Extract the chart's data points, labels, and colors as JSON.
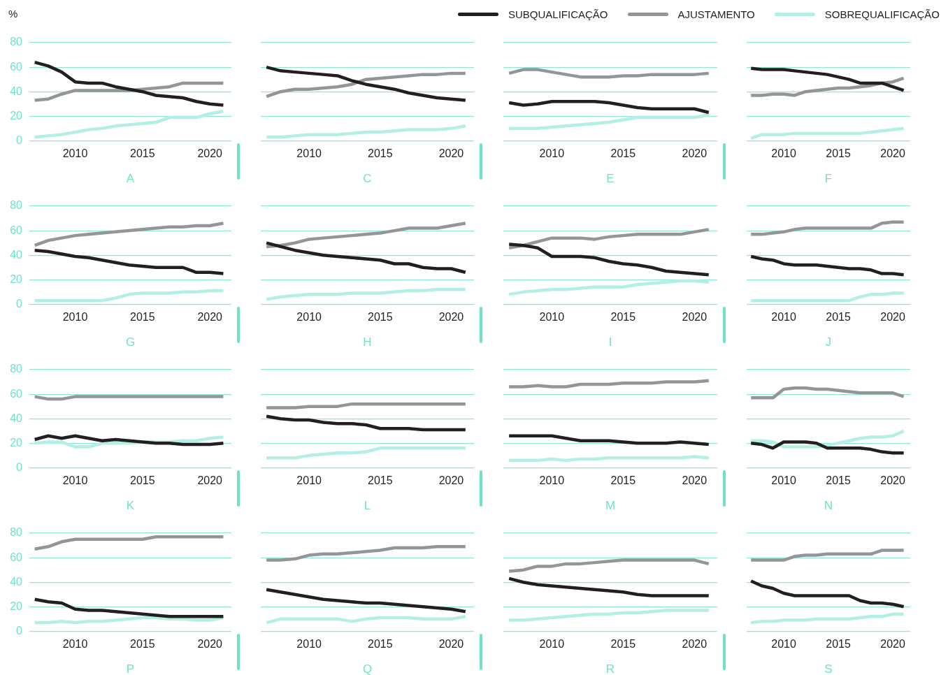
{
  "chart_data": [
    {
      "type": "line",
      "xlabel": "A",
      "ylabel": "%",
      "legend": "top right",
      "marker": "none",
      "grid": "y",
      "x": [
        2007,
        2008,
        2009,
        2010,
        2011,
        2012,
        2013,
        2014,
        2015,
        2016,
        2017,
        2018,
        2019,
        2020,
        2021
      ],
      "xlim": [
        2006.6,
        2021.6
      ],
      "xticks": [
        2010,
        2015,
        2020
      ],
      "ylim": [
        0,
        80
      ],
      "yticks": [
        0,
        20,
        40,
        60,
        80
      ],
      "series": [
        {
          "name": "SUBQUALIFICAÇÃO",
          "color": "#231f20",
          "values": [
            64,
            61,
            56,
            48,
            47,
            47,
            44,
            42,
            40,
            37,
            36,
            35,
            32,
            30,
            29
          ]
        },
        {
          "name": "AJUSTAMENTO",
          "color": "#939598",
          "values": [
            33,
            34,
            38,
            41,
            41,
            41,
            41,
            41,
            42,
            43,
            44,
            47,
            47,
            47,
            47
          ]
        },
        {
          "name": "SOBREQUALIFICAÇÃO",
          "color": "#b3f0e3",
          "values": [
            3,
            4,
            5,
            7,
            9,
            10,
            12,
            13,
            14,
            15,
            19,
            19,
            19,
            22,
            24
          ]
        }
      ]
    },
    {
      "type": "line",
      "xlabel": "C",
      "tick_labels": "x",
      "marker": "none",
      "grid": "y",
      "x": [
        2007,
        2008,
        2009,
        2010,
        2011,
        2012,
        2013,
        2014,
        2015,
        2016,
        2017,
        2018,
        2019,
        2020,
        2021
      ],
      "xlim": [
        2006.6,
        2021.6
      ],
      "xticks": [
        2010,
        2015,
        2020
      ],
      "ylim": [
        0,
        80
      ],
      "yticks": [
        0,
        20,
        40,
        60,
        80
      ],
      "series": [
        {
          "color": "#231f20",
          "values": [
            60,
            57,
            56,
            55,
            54,
            53,
            49,
            46,
            44,
            42,
            39,
            37,
            35,
            34,
            33
          ]
        },
        {
          "color": "#939598",
          "values": [
            36,
            40,
            42,
            42,
            43,
            44,
            46,
            50,
            51,
            52,
            53,
            54,
            54,
            55,
            55
          ]
        },
        {
          "color": "#b3f0e3",
          "values": [
            3,
            3,
            4,
            5,
            5,
            5,
            6,
            7,
            7,
            8,
            9,
            9,
            9,
            10,
            12
          ]
        }
      ]
    },
    {
      "type": "line",
      "xlabel": "E",
      "tick_labels": "x",
      "marker": "none",
      "grid": "y",
      "x": [
        2007,
        2008,
        2009,
        2010,
        2011,
        2012,
        2013,
        2014,
        2015,
        2016,
        2017,
        2018,
        2019,
        2020,
        2021
      ],
      "xlim": [
        2006.6,
        2021.6
      ],
      "xticks": [
        2010,
        2015,
        2020
      ],
      "ylim": [
        0,
        80
      ],
      "yticks": [
        0,
        20,
        40,
        60,
        80
      ],
      "series": [
        {
          "color": "#231f20",
          "values": [
            31,
            29,
            30,
            32,
            32,
            32,
            32,
            31,
            29,
            27,
            26,
            26,
            26,
            26,
            23
          ]
        },
        {
          "color": "#939598",
          "values": [
            55,
            58,
            58,
            56,
            54,
            52,
            52,
            52,
            53,
            53,
            54,
            54,
            54,
            54,
            55
          ]
        },
        {
          "color": "#b3f0e3",
          "values": [
            10,
            10,
            10,
            11,
            12,
            13,
            14,
            15,
            17,
            19,
            19,
            19,
            19,
            19,
            21
          ]
        }
      ]
    },
    {
      "type": "line",
      "xlabel": "F",
      "tick_labels": "x",
      "marker": "none",
      "grid": "y",
      "x": [
        2007,
        2008,
        2009,
        2010,
        2011,
        2012,
        2013,
        2014,
        2015,
        2016,
        2017,
        2018,
        2019,
        2020,
        2021
      ],
      "xlim": [
        2006.6,
        2021.6
      ],
      "xticks": [
        2010,
        2015,
        2020
      ],
      "ylim": [
        0,
        80
      ],
      "yticks": [
        0,
        20,
        40,
        60,
        80
      ],
      "series": [
        {
          "color": "#231f20",
          "values": [
            59,
            58,
            58,
            58,
            57,
            56,
            55,
            54,
            52,
            50,
            47,
            47,
            47,
            44,
            41
          ]
        },
        {
          "color": "#939598",
          "values": [
            37,
            37,
            38,
            38,
            37,
            40,
            41,
            42,
            43,
            43,
            44,
            45,
            47,
            48,
            51
          ]
        },
        {
          "color": "#b3f0e3",
          "values": [
            2,
            5,
            5,
            5,
            6,
            6,
            6,
            6,
            6,
            6,
            6,
            7,
            8,
            9,
            10
          ]
        }
      ]
    },
    {
      "type": "line",
      "xlabel": "G",
      "marker": "none",
      "grid": "y",
      "x": [
        2007,
        2008,
        2009,
        2010,
        2011,
        2012,
        2013,
        2014,
        2015,
        2016,
        2017,
        2018,
        2019,
        2020,
        2021
      ],
      "xlim": [
        2006.6,
        2021.6
      ],
      "xticks": [
        2010,
        2015,
        2020
      ],
      "ylim": [
        0,
        80
      ],
      "yticks": [
        0,
        20,
        40,
        60,
        80
      ],
      "series": [
        {
          "color": "#231f20",
          "values": [
            44,
            43,
            41,
            39,
            38,
            36,
            34,
            32,
            31,
            30,
            30,
            30,
            26,
            26,
            25
          ]
        },
        {
          "color": "#939598",
          "values": [
            48,
            52,
            54,
            56,
            57,
            58,
            59,
            60,
            61,
            62,
            63,
            63,
            64,
            64,
            66
          ]
        },
        {
          "color": "#b3f0e3",
          "values": [
            3,
            3,
            3,
            3,
            3,
            3,
            5,
            8,
            9,
            9,
            9,
            10,
            10,
            11,
            11
          ]
        }
      ]
    },
    {
      "type": "line",
      "xlabel": "H",
      "tick_labels": "x",
      "marker": "none",
      "grid": "y",
      "x": [
        2007,
        2008,
        2009,
        2010,
        2011,
        2012,
        2013,
        2014,
        2015,
        2016,
        2017,
        2018,
        2019,
        2020,
        2021
      ],
      "xlim": [
        2006.6,
        2021.6
      ],
      "xticks": [
        2010,
        2015,
        2020
      ],
      "ylim": [
        0,
        80
      ],
      "yticks": [
        0,
        20,
        40,
        60,
        80
      ],
      "series": [
        {
          "color": "#231f20",
          "values": [
            50,
            47,
            44,
            42,
            40,
            39,
            38,
            37,
            36,
            33,
            33,
            30,
            29,
            29,
            26
          ]
        },
        {
          "color": "#939598",
          "values": [
            47,
            48,
            50,
            53,
            54,
            55,
            56,
            57,
            58,
            60,
            62,
            62,
            62,
            64,
            66
          ]
        },
        {
          "color": "#b3f0e3",
          "values": [
            4,
            6,
            7,
            8,
            8,
            8,
            9,
            9,
            9,
            10,
            11,
            11,
            12,
            12,
            12
          ]
        }
      ]
    },
    {
      "type": "line",
      "xlabel": "I",
      "tick_labels": "x",
      "marker": "none",
      "grid": "y",
      "x": [
        2007,
        2008,
        2009,
        2010,
        2011,
        2012,
        2013,
        2014,
        2015,
        2016,
        2017,
        2018,
        2019,
        2020,
        2021
      ],
      "xlim": [
        2006.6,
        2021.6
      ],
      "xticks": [
        2010,
        2015,
        2020
      ],
      "ylim": [
        0,
        80
      ],
      "yticks": [
        0,
        20,
        40,
        60,
        80
      ],
      "series": [
        {
          "color": "#231f20",
          "values": [
            49,
            48,
            46,
            39,
            39,
            39,
            38,
            35,
            33,
            32,
            30,
            27,
            26,
            25,
            24
          ]
        },
        {
          "color": "#939598",
          "values": [
            46,
            48,
            51,
            54,
            54,
            54,
            53,
            55,
            56,
            57,
            57,
            57,
            57,
            59,
            61
          ]
        },
        {
          "color": "#b3f0e3",
          "values": [
            8,
            10,
            11,
            12,
            12,
            13,
            14,
            14,
            14,
            16,
            17,
            18,
            19,
            19,
            18
          ]
        }
      ]
    },
    {
      "type": "line",
      "xlabel": "J",
      "tick_labels": "x",
      "marker": "none",
      "grid": "y",
      "x": [
        2007,
        2008,
        2009,
        2010,
        2011,
        2012,
        2013,
        2014,
        2015,
        2016,
        2017,
        2018,
        2019,
        2020,
        2021
      ],
      "xlim": [
        2006.6,
        2021.6
      ],
      "xticks": [
        2010,
        2015,
        2020
      ],
      "ylim": [
        0,
        80
      ],
      "yticks": [
        0,
        20,
        40,
        60,
        80
      ],
      "series": [
        {
          "color": "#231f20",
          "values": [
            39,
            37,
            36,
            33,
            32,
            32,
            32,
            31,
            30,
            29,
            29,
            28,
            25,
            25,
            24
          ]
        },
        {
          "color": "#939598",
          "values": [
            57,
            57,
            58,
            59,
            61,
            62,
            62,
            62,
            62,
            62,
            62,
            62,
            66,
            67,
            67
          ]
        },
        {
          "color": "#b3f0e3",
          "values": [
            3,
            3,
            3,
            3,
            3,
            3,
            3,
            3,
            3,
            3,
            6,
            8,
            8,
            9,
            9
          ]
        }
      ]
    },
    {
      "type": "line",
      "xlabel": "K",
      "marker": "none",
      "grid": "y",
      "x": [
        2007,
        2008,
        2009,
        2010,
        2011,
        2012,
        2013,
        2014,
        2015,
        2016,
        2017,
        2018,
        2019,
        2020,
        2021
      ],
      "xlim": [
        2006.6,
        2021.6
      ],
      "xticks": [
        2010,
        2015,
        2020
      ],
      "ylim": [
        0,
        80
      ],
      "yticks": [
        0,
        20,
        40,
        60,
        80
      ],
      "series": [
        {
          "color": "#231f20",
          "values": [
            23,
            26,
            24,
            26,
            24,
            22,
            23,
            22,
            21,
            20,
            20,
            19,
            19,
            19,
            20
          ]
        },
        {
          "color": "#939598",
          "values": [
            58,
            56,
            56,
            58,
            58,
            58,
            58,
            58,
            58,
            58,
            58,
            58,
            58,
            58,
            58
          ]
        },
        {
          "color": "#b3f0e3",
          "values": [
            20,
            21,
            21,
            17,
            17,
            20,
            20,
            20,
            21,
            21,
            21,
            22,
            22,
            24,
            25
          ]
        }
      ]
    },
    {
      "type": "line",
      "xlabel": "L",
      "tick_labels": "x",
      "marker": "none",
      "grid": "y",
      "x": [
        2007,
        2008,
        2009,
        2010,
        2011,
        2012,
        2013,
        2014,
        2015,
        2016,
        2017,
        2018,
        2019,
        2020,
        2021
      ],
      "xlim": [
        2006.6,
        2021.6
      ],
      "xticks": [
        2010,
        2015,
        2020
      ],
      "ylim": [
        0,
        80
      ],
      "yticks": [
        0,
        20,
        40,
        60,
        80
      ],
      "series": [
        {
          "color": "#231f20",
          "values": [
            42,
            40,
            39,
            39,
            37,
            36,
            36,
            35,
            32,
            32,
            32,
            31,
            31,
            31,
            31
          ]
        },
        {
          "color": "#939598",
          "values": [
            49,
            49,
            49,
            50,
            50,
            50,
            52,
            52,
            52,
            52,
            52,
            52,
            52,
            52,
            52
          ]
        },
        {
          "color": "#b3f0e3",
          "values": [
            8,
            8,
            8,
            10,
            11,
            12,
            12,
            13,
            16,
            16,
            16,
            16,
            16,
            16,
            16
          ]
        }
      ]
    },
    {
      "type": "line",
      "xlabel": "M",
      "tick_labels": "x",
      "marker": "none",
      "grid": "y",
      "x": [
        2007,
        2008,
        2009,
        2010,
        2011,
        2012,
        2013,
        2014,
        2015,
        2016,
        2017,
        2018,
        2019,
        2020,
        2021
      ],
      "xlim": [
        2006.6,
        2021.6
      ],
      "xticks": [
        2010,
        2015,
        2020
      ],
      "ylim": [
        0,
        80
      ],
      "yticks": [
        0,
        20,
        40,
        60,
        80
      ],
      "series": [
        {
          "color": "#231f20",
          "values": [
            26,
            26,
            26,
            26,
            24,
            22,
            22,
            22,
            21,
            20,
            20,
            20,
            21,
            20,
            19
          ]
        },
        {
          "color": "#939598",
          "values": [
            66,
            66,
            67,
            66,
            66,
            68,
            68,
            68,
            69,
            69,
            69,
            70,
            70,
            70,
            71
          ]
        },
        {
          "color": "#b3f0e3",
          "values": [
            6,
            6,
            6,
            7,
            6,
            7,
            7,
            8,
            8,
            8,
            8,
            8,
            8,
            9,
            8
          ]
        }
      ]
    },
    {
      "type": "line",
      "xlabel": "N",
      "tick_labels": "x",
      "marker": "none",
      "grid": "y",
      "x": [
        2007,
        2008,
        2009,
        2010,
        2011,
        2012,
        2013,
        2014,
        2015,
        2016,
        2017,
        2018,
        2019,
        2020,
        2021
      ],
      "xlim": [
        2006.6,
        2021.6
      ],
      "xticks": [
        2010,
        2015,
        2020
      ],
      "ylim": [
        0,
        80
      ],
      "yticks": [
        0,
        20,
        40,
        60,
        80
      ],
      "series": [
        {
          "color": "#231f20",
          "values": [
            20,
            19,
            16,
            21,
            21,
            21,
            20,
            16,
            16,
            16,
            16,
            15,
            13,
            12,
            12
          ]
        },
        {
          "color": "#939598",
          "values": [
            57,
            57,
            57,
            64,
            65,
            65,
            64,
            64,
            63,
            62,
            61,
            61,
            61,
            61,
            58
          ]
        },
        {
          "color": "#b3f0e3",
          "values": [
            22,
            22,
            21,
            17,
            17,
            17,
            17,
            18,
            20,
            22,
            24,
            25,
            25,
            26,
            30
          ]
        }
      ]
    },
    {
      "type": "line",
      "xlabel": "P",
      "marker": "none",
      "grid": "y",
      "x": [
        2007,
        2008,
        2009,
        2010,
        2011,
        2012,
        2013,
        2014,
        2015,
        2016,
        2017,
        2018,
        2019,
        2020,
        2021
      ],
      "xlim": [
        2006.6,
        2021.6
      ],
      "xticks": [
        2010,
        2015,
        2020
      ],
      "ylim": [
        0,
        80
      ],
      "yticks": [
        0,
        20,
        40,
        60,
        80
      ],
      "series": [
        {
          "color": "#231f20",
          "values": [
            26,
            24,
            23,
            18,
            17,
            17,
            16,
            15,
            14,
            13,
            12,
            12,
            12,
            12,
            12
          ]
        },
        {
          "color": "#939598",
          "values": [
            67,
            69,
            73,
            75,
            75,
            75,
            75,
            75,
            75,
            77,
            77,
            77,
            77,
            77,
            77
          ]
        },
        {
          "color": "#b3f0e3",
          "values": [
            7,
            7,
            8,
            7,
            8,
            8,
            9,
            10,
            11,
            11,
            10,
            10,
            9,
            9,
            11
          ]
        }
      ]
    },
    {
      "type": "line",
      "xlabel": "Q",
      "tick_labels": "x",
      "marker": "none",
      "grid": "y",
      "x": [
        2007,
        2008,
        2009,
        2010,
        2011,
        2012,
        2013,
        2014,
        2015,
        2016,
        2017,
        2018,
        2019,
        2020,
        2021
      ],
      "xlim": [
        2006.6,
        2021.6
      ],
      "xticks": [
        2010,
        2015,
        2020
      ],
      "ylim": [
        0,
        80
      ],
      "yticks": [
        0,
        20,
        40,
        60,
        80
      ],
      "series": [
        {
          "color": "#231f20",
          "values": [
            34,
            32,
            30,
            28,
            26,
            25,
            24,
            23,
            23,
            22,
            21,
            20,
            19,
            18,
            16
          ]
        },
        {
          "color": "#939598",
          "values": [
            58,
            58,
            59,
            62,
            63,
            63,
            64,
            65,
            66,
            68,
            68,
            68,
            69,
            69,
            69
          ]
        },
        {
          "color": "#b3f0e3",
          "values": [
            7,
            10,
            10,
            10,
            10,
            10,
            8,
            10,
            11,
            11,
            11,
            10,
            10,
            10,
            12
          ]
        }
      ]
    },
    {
      "type": "line",
      "xlabel": "R",
      "tick_labels": "x",
      "marker": "none",
      "grid": "y",
      "x": [
        2007,
        2008,
        2009,
        2010,
        2011,
        2012,
        2013,
        2014,
        2015,
        2016,
        2017,
        2018,
        2019,
        2020,
        2021
      ],
      "xlim": [
        2006.6,
        2021.6
      ],
      "xticks": [
        2010,
        2015,
        2020
      ],
      "ylim": [
        0,
        80
      ],
      "yticks": [
        0,
        20,
        40,
        60,
        80
      ],
      "series": [
        {
          "color": "#231f20",
          "values": [
            43,
            40,
            38,
            37,
            36,
            35,
            34,
            33,
            32,
            30,
            29,
            29,
            29,
            29,
            29
          ]
        },
        {
          "color": "#939598",
          "values": [
            49,
            50,
            53,
            53,
            55,
            55,
            56,
            57,
            58,
            58,
            58,
            58,
            58,
            58,
            55
          ]
        },
        {
          "color": "#b3f0e3",
          "values": [
            9,
            9,
            10,
            11,
            12,
            13,
            14,
            14,
            15,
            15,
            16,
            17,
            17,
            17,
            17
          ]
        }
      ]
    },
    {
      "type": "line",
      "xlabel": "S",
      "tick_labels": "x",
      "marker": "none",
      "grid": "y",
      "x": [
        2007,
        2008,
        2009,
        2010,
        2011,
        2012,
        2013,
        2014,
        2015,
        2016,
        2017,
        2018,
        2019,
        2020,
        2021
      ],
      "xlim": [
        2006.6,
        2021.6
      ],
      "xticks": [
        2010,
        2015,
        2020
      ],
      "ylim": [
        0,
        80
      ],
      "yticks": [
        0,
        20,
        40,
        60,
        80
      ],
      "series": [
        {
          "color": "#231f20",
          "values": [
            41,
            37,
            35,
            31,
            29,
            29,
            29,
            29,
            29,
            29,
            25,
            23,
            23,
            22,
            20
          ]
        },
        {
          "color": "#939598",
          "values": [
            58,
            58,
            58,
            58,
            61,
            62,
            62,
            63,
            63,
            63,
            63,
            63,
            66,
            66,
            66
          ]
        },
        {
          "color": "#b3f0e3",
          "values": [
            7,
            8,
            8,
            9,
            9,
            9,
            10,
            10,
            10,
            10,
            11,
            12,
            12,
            14,
            14
          ]
        }
      ]
    }
  ]
}
